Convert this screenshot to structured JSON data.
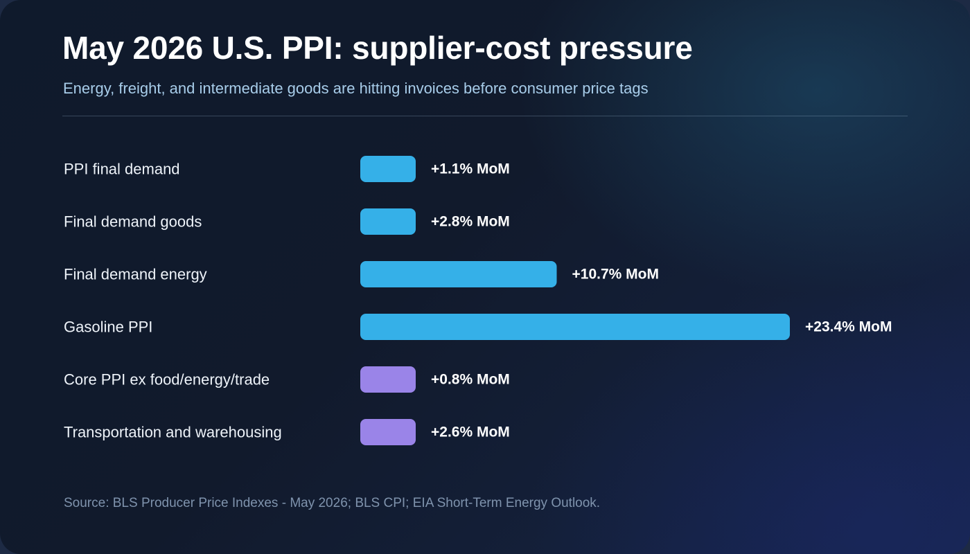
{
  "header": {
    "title": "May 2026 U.S. PPI: supplier-cost pressure",
    "subtitle": "Energy, freight, and intermediate goods are hitting invoices before consumer price tags"
  },
  "footer": {
    "source": "Source: BLS Producer Price Indexes - May 2026; BLS CPI; EIA Short-Term Energy Outlook."
  },
  "colors": {
    "headline_series": "#35b0e8",
    "core_series": "#9a84e8"
  },
  "chart_data": {
    "type": "bar",
    "orientation": "horizontal",
    "unit": "% MoM",
    "categories": [
      "PPI final demand",
      "Final demand goods",
      "Final demand energy",
      "Gasoline PPI",
      "Core PPI ex food/energy/trade",
      "Transportation and warehousing"
    ],
    "values": [
      1.1,
      2.8,
      10.7,
      23.4,
      0.8,
      2.6
    ],
    "value_labels": [
      "+1.1% MoM",
      "+2.8% MoM",
      "+10.7% MoM",
      "+23.4% MoM",
      "+0.8% MoM",
      "+2.6% MoM"
    ],
    "bar_colors": [
      "#35b0e8",
      "#35b0e8",
      "#35b0e8",
      "#35b0e8",
      "#9a84e8",
      "#9a84e8"
    ],
    "xlim": [
      0,
      23.4
    ],
    "grid": false,
    "legend": "none"
  }
}
